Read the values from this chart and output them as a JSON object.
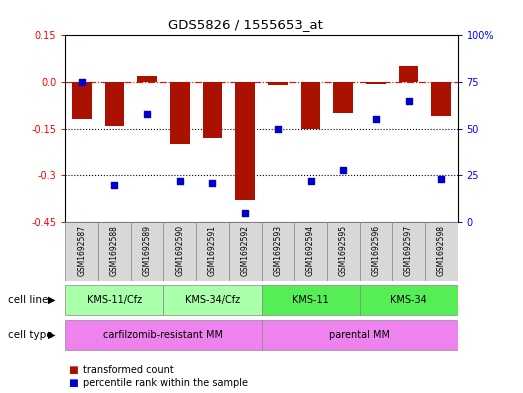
{
  "title": "GDS5826 / 1555653_at",
  "samples": [
    "GSM1692587",
    "GSM1692588",
    "GSM1692589",
    "GSM1692590",
    "GSM1692591",
    "GSM1692592",
    "GSM1692593",
    "GSM1692594",
    "GSM1692595",
    "GSM1692596",
    "GSM1692597",
    "GSM1692598"
  ],
  "bar_values": [
    -0.12,
    -0.14,
    0.02,
    -0.2,
    -0.18,
    -0.38,
    -0.01,
    -0.15,
    -0.1,
    -0.005,
    0.05,
    -0.11
  ],
  "blue_values": [
    75,
    20,
    58,
    22,
    21,
    5,
    50,
    22,
    28,
    55,
    65,
    23
  ],
  "cell_lines": [
    {
      "label": "KMS-11/Cfz",
      "start": 0,
      "end": 2,
      "color": "#aaffaa"
    },
    {
      "label": "KMS-34/Cfz",
      "start": 3,
      "end": 5,
      "color": "#aaffaa"
    },
    {
      "label": "KMS-11",
      "start": 6,
      "end": 8,
      "color": "#55ee55"
    },
    {
      "label": "KMS-34",
      "start": 9,
      "end": 11,
      "color": "#55ee55"
    }
  ],
  "cell_types": [
    {
      "label": "carfilzomib-resistant MM",
      "start": 0,
      "end": 5,
      "color": "#ee82ee"
    },
    {
      "label": "parental MM",
      "start": 6,
      "end": 11,
      "color": "#ee82ee"
    }
  ],
  "ylim_left": [
    -0.45,
    0.15
  ],
  "ylim_right": [
    0,
    100
  ],
  "yticks_left": [
    0.15,
    0.0,
    -0.15,
    -0.3,
    -0.45
  ],
  "yticks_right": [
    100,
    75,
    50,
    25,
    0
  ],
  "bar_color": "#aa1100",
  "blue_color": "#0000cc",
  "dotted_lines": [
    -0.15,
    -0.3
  ],
  "legend_bar": "transformed count",
  "legend_blue": "percentile rank within the sample",
  "cell_line_label": "cell line",
  "cell_type_label": "cell type",
  "sample_bg_color": "#d8d8d8"
}
